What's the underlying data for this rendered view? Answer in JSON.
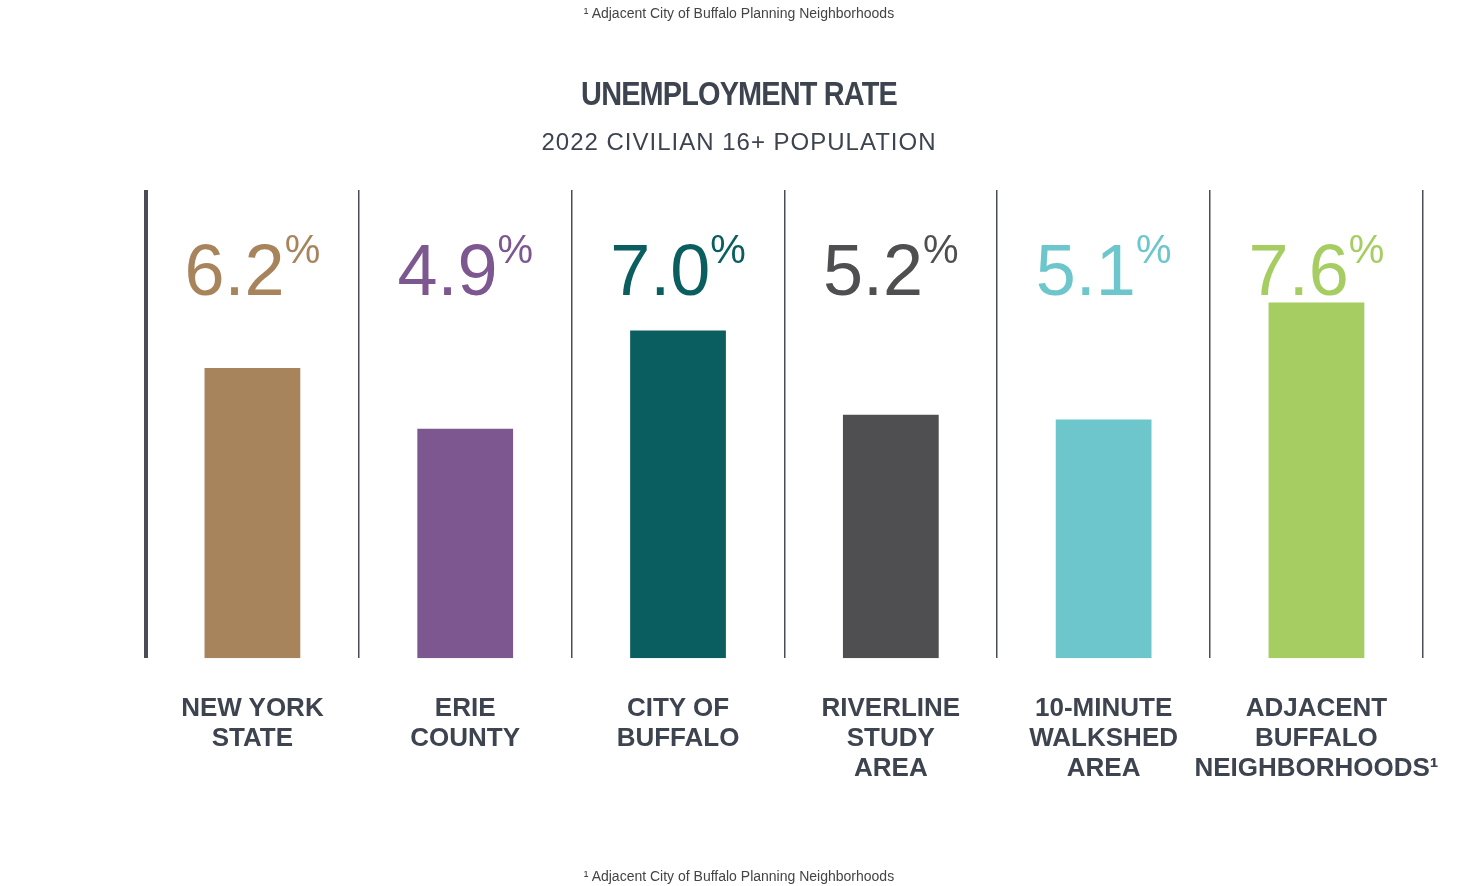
{
  "chart_data": {
    "type": "bar",
    "title": "UNEMPLOYMENT RATE",
    "subtitle": "2022 CIVILIAN 16+ POPULATION",
    "categories": [
      "NEW YORK STATE",
      "ERIE COUNTY",
      "CITY OF BUFFALO",
      "RIVERLINE STUDY AREA",
      "10-MINUTE WALKSHED AREA",
      "ADJACENT BUFFALO NEIGHBORHOODS¹"
    ],
    "values": [
      6.2,
      4.9,
      7.0,
      5.2,
      5.1,
      7.6
    ],
    "colors": [
      "#a8845c",
      "#7d5790",
      "#0b5e5f",
      "#4f4f51",
      "#6cc6cc",
      "#a6cd62"
    ],
    "value_labels": [
      "6.2%",
      "4.9%",
      "7.0%",
      "5.2%",
      "5.1%",
      "7.6%"
    ],
    "relative": false,
    "grid": "x",
    "annotations": [
      "¹ Adjacent City of Buffalo Planning Neighborhoods",
      "¹ Adjacent City of Buffalo Planning Neighborhoods"
    ]
  }
}
